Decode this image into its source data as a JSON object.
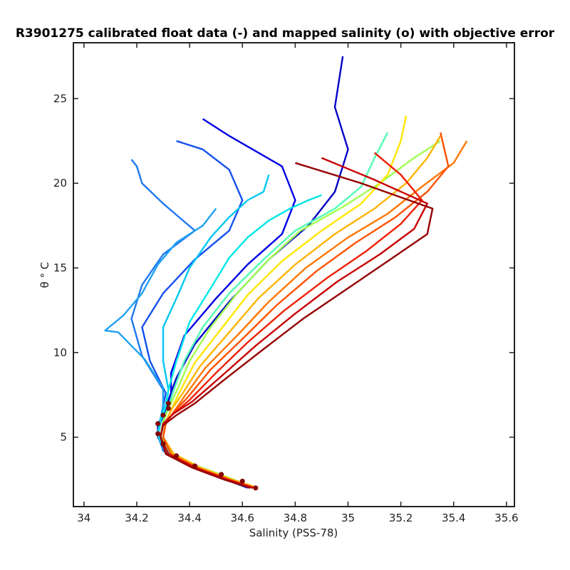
{
  "chart_data": {
    "type": "line",
    "title": "R3901275 calibrated float data (-) and mapped salinity (o) with objective error",
    "xlabel": "Salinity (PSS-78)",
    "ylabel": "θ ° C",
    "xlim": [
      33.96,
      35.63
    ],
    "ylim": [
      0.9,
      28.3
    ],
    "xticks": [
      "34",
      "34.2",
      "34.4",
      "34.6",
      "34.8",
      "35",
      "35.2",
      "35.4",
      "35.6"
    ],
    "xtick_values": [
      34.0,
      34.2,
      34.4,
      34.6,
      34.8,
      35.0,
      35.2,
      35.4,
      35.6
    ],
    "yticks": [
      "5",
      "10",
      "15",
      "20",
      "25"
    ],
    "ytick_values": [
      5,
      10,
      15,
      20,
      25
    ],
    "grid": false,
    "colormap": "jet",
    "deep_curve": {
      "salinity": [
        34.65,
        34.6,
        34.52,
        34.42,
        34.35,
        34.3,
        34.28,
        34.28,
        34.3,
        34.32,
        34.32
      ],
      "theta": [
        2.0,
        2.4,
        2.8,
        3.3,
        3.9,
        4.6,
        5.2,
        5.8,
        6.3,
        6.7,
        7.0
      ]
    },
    "series": [
      {
        "color": "#0000c8",
        "values": [
          [
            34.65,
            2.0
          ],
          [
            34.55,
            2.5
          ],
          [
            34.42,
            3.2
          ],
          [
            34.32,
            4.0
          ],
          [
            34.28,
            5.0
          ],
          [
            34.28,
            5.8
          ],
          [
            34.31,
            6.5
          ],
          [
            34.32,
            7.2
          ],
          [
            34.35,
            8.5
          ],
          [
            34.42,
            10.5
          ],
          [
            34.55,
            13.0
          ],
          [
            34.7,
            15.5
          ],
          [
            34.85,
            17.5
          ],
          [
            34.95,
            19.5
          ],
          [
            35.0,
            22.0
          ],
          [
            34.95,
            24.5
          ],
          [
            34.98,
            27.5
          ]
        ]
      },
      {
        "color": "#0000e6",
        "values": [
          [
            34.64,
            2.0
          ],
          [
            34.54,
            2.6
          ],
          [
            34.41,
            3.3
          ],
          [
            34.31,
            4.1
          ],
          [
            34.28,
            5.1
          ],
          [
            34.29,
            5.9
          ],
          [
            34.31,
            6.6
          ],
          [
            34.33,
            7.4
          ],
          [
            34.33,
            8.8
          ],
          [
            34.38,
            11.0
          ],
          [
            34.5,
            13.2
          ],
          [
            34.62,
            15.2
          ],
          [
            34.75,
            17.0
          ],
          [
            34.8,
            19.0
          ],
          [
            34.75,
            21.0
          ],
          [
            34.55,
            22.8
          ],
          [
            34.45,
            23.8
          ]
        ]
      },
      {
        "color": "#1450f0",
        "values": [
          [
            34.62,
            2.0
          ],
          [
            34.52,
            2.6
          ],
          [
            34.4,
            3.3
          ],
          [
            34.3,
            4.2
          ],
          [
            34.28,
            5.2
          ],
          [
            34.29,
            6.0
          ],
          [
            34.3,
            6.8
          ],
          [
            34.31,
            7.6
          ],
          [
            34.25,
            9.5
          ],
          [
            34.22,
            11.5
          ],
          [
            34.3,
            13.5
          ],
          [
            34.42,
            15.5
          ],
          [
            34.55,
            17.2
          ],
          [
            34.6,
            19.0
          ],
          [
            34.55,
            20.8
          ],
          [
            34.45,
            22.0
          ],
          [
            34.35,
            22.5
          ]
        ]
      },
      {
        "color": "#1e78f0",
        "values": [
          [
            34.63,
            2.0
          ],
          [
            34.53,
            2.6
          ],
          [
            34.4,
            3.4
          ],
          [
            34.3,
            4.2
          ],
          [
            34.28,
            5.1
          ],
          [
            34.29,
            6.0
          ],
          [
            34.3,
            6.8
          ],
          [
            34.3,
            7.8
          ],
          [
            34.22,
            9.8
          ],
          [
            34.18,
            12.0
          ],
          [
            34.22,
            14.0
          ],
          [
            34.3,
            15.8
          ],
          [
            34.42,
            17.2
          ],
          [
            34.3,
            18.8
          ],
          [
            34.22,
            20.0
          ],
          [
            34.2,
            21.0
          ],
          [
            34.18,
            21.4
          ]
        ]
      },
      {
        "color": "#1ea0f0",
        "values": [
          [
            34.63,
            2.1
          ],
          [
            34.52,
            2.7
          ],
          [
            34.4,
            3.4
          ],
          [
            34.3,
            4.3
          ],
          [
            34.28,
            5.2
          ],
          [
            34.29,
            6.1
          ],
          [
            34.3,
            6.9
          ],
          [
            34.3,
            7.9
          ],
          [
            34.23,
            9.6
          ],
          [
            34.13,
            11.2
          ],
          [
            34.08,
            11.3
          ],
          [
            34.15,
            12.2
          ],
          [
            34.22,
            13.5
          ],
          [
            34.28,
            15.2
          ],
          [
            34.35,
            16.5
          ],
          [
            34.45,
            17.5
          ],
          [
            34.5,
            18.5
          ]
        ]
      },
      {
        "color": "#00c8f0",
        "values": [
          [
            34.64,
            2.0
          ],
          [
            34.54,
            2.6
          ],
          [
            34.41,
            3.3
          ],
          [
            34.31,
            4.2
          ],
          [
            34.28,
            5.2
          ],
          [
            34.29,
            6.1
          ],
          [
            34.31,
            6.9
          ],
          [
            34.32,
            7.8
          ],
          [
            34.3,
            9.5
          ],
          [
            34.3,
            11.5
          ],
          [
            34.35,
            13.2
          ],
          [
            34.4,
            15.0
          ],
          [
            34.48,
            16.8
          ],
          [
            34.55,
            18.0
          ],
          [
            34.62,
            19.0
          ],
          [
            34.68,
            19.5
          ],
          [
            34.7,
            20.5
          ]
        ]
      },
      {
        "color": "#00e6e6",
        "values": [
          [
            34.64,
            2.0
          ],
          [
            34.53,
            2.6
          ],
          [
            34.41,
            3.3
          ],
          [
            34.31,
            4.2
          ],
          [
            34.28,
            5.1
          ],
          [
            34.29,
            6.0
          ],
          [
            34.31,
            6.8
          ],
          [
            34.32,
            7.8
          ],
          [
            34.35,
            9.5
          ],
          [
            34.4,
            11.8
          ],
          [
            34.48,
            13.8
          ],
          [
            34.55,
            15.6
          ],
          [
            34.62,
            16.8
          ],
          [
            34.7,
            17.8
          ],
          [
            34.78,
            18.5
          ],
          [
            34.85,
            19.0
          ],
          [
            34.9,
            19.3
          ]
        ]
      },
      {
        "color": "#50ffb4",
        "values": [
          [
            34.65,
            2.0
          ],
          [
            34.54,
            2.6
          ],
          [
            34.42,
            3.3
          ],
          [
            34.32,
            4.2
          ],
          [
            34.29,
            5.1
          ],
          [
            34.3,
            6.0
          ],
          [
            34.32,
            6.8
          ],
          [
            34.34,
            7.8
          ],
          [
            34.38,
            9.5
          ],
          [
            34.45,
            11.5
          ],
          [
            34.55,
            13.5
          ],
          [
            34.68,
            15.5
          ],
          [
            34.8,
            17.2
          ],
          [
            34.95,
            18.5
          ],
          [
            35.05,
            19.8
          ],
          [
            35.1,
            21.5
          ],
          [
            35.15,
            23.0
          ]
        ]
      },
      {
        "color": "#a0ff50",
        "values": [
          [
            34.65,
            2.0
          ],
          [
            34.55,
            2.6
          ],
          [
            34.43,
            3.3
          ],
          [
            34.33,
            4.1
          ],
          [
            34.29,
            5.0
          ],
          [
            34.3,
            5.9
          ],
          [
            34.32,
            6.7
          ],
          [
            34.35,
            7.7
          ],
          [
            34.4,
            9.5
          ],
          [
            34.48,
            11.5
          ],
          [
            34.58,
            13.5
          ],
          [
            34.7,
            15.5
          ],
          [
            34.82,
            17.2
          ],
          [
            34.98,
            18.6
          ],
          [
            35.12,
            20.0
          ],
          [
            35.25,
            21.5
          ],
          [
            35.35,
            22.5
          ]
        ]
      },
      {
        "color": "#ffe600",
        "values": [
          [
            34.66,
            2.0
          ],
          [
            34.56,
            2.5
          ],
          [
            34.44,
            3.2
          ],
          [
            34.34,
            4.0
          ],
          [
            34.3,
            5.0
          ],
          [
            34.31,
            5.9
          ],
          [
            34.33,
            6.6
          ],
          [
            34.36,
            7.6
          ],
          [
            34.42,
            9.4
          ],
          [
            34.52,
            11.4
          ],
          [
            34.62,
            13.4
          ],
          [
            34.75,
            15.4
          ],
          [
            34.9,
            17.2
          ],
          [
            35.05,
            18.8
          ],
          [
            35.15,
            20.5
          ],
          [
            35.2,
            22.5
          ],
          [
            35.22,
            24.0
          ]
        ]
      },
      {
        "color": "#ffb400",
        "values": [
          [
            34.66,
            2.0
          ],
          [
            34.56,
            2.5
          ],
          [
            34.44,
            3.2
          ],
          [
            34.34,
            4.0
          ],
          [
            34.3,
            5.0
          ],
          [
            34.31,
            5.9
          ],
          [
            34.33,
            6.6
          ],
          [
            34.37,
            7.5
          ],
          [
            34.44,
            9.2
          ],
          [
            34.55,
            11.2
          ],
          [
            34.66,
            13.2
          ],
          [
            34.8,
            15.2
          ],
          [
            34.95,
            17.0
          ],
          [
            35.1,
            18.5
          ],
          [
            35.22,
            20.0
          ],
          [
            35.3,
            21.5
          ],
          [
            35.35,
            22.8
          ]
        ]
      },
      {
        "color": "#ff7800",
        "values": [
          [
            34.65,
            2.0
          ],
          [
            34.55,
            2.5
          ],
          [
            34.43,
            3.2
          ],
          [
            34.33,
            4.0
          ],
          [
            34.3,
            5.0
          ],
          [
            34.31,
            5.8
          ],
          [
            34.34,
            6.5
          ],
          [
            34.38,
            7.4
          ],
          [
            34.46,
            9.1
          ],
          [
            34.58,
            11.0
          ],
          [
            34.7,
            13.0
          ],
          [
            34.84,
            15.0
          ],
          [
            35.0,
            16.8
          ],
          [
            35.15,
            18.2
          ],
          [
            35.28,
            19.8
          ],
          [
            35.4,
            21.2
          ],
          [
            35.45,
            22.5
          ]
        ]
      },
      {
        "color": "#ff5000",
        "values": [
          [
            34.65,
            2.0
          ],
          [
            34.55,
            2.5
          ],
          [
            34.43,
            3.2
          ],
          [
            34.33,
            4.0
          ],
          [
            34.3,
            5.0
          ],
          [
            34.31,
            5.8
          ],
          [
            34.34,
            6.5
          ],
          [
            34.39,
            7.3
          ],
          [
            34.48,
            9.0
          ],
          [
            34.6,
            10.8
          ],
          [
            34.73,
            12.8
          ],
          [
            34.88,
            14.8
          ],
          [
            35.03,
            16.5
          ],
          [
            35.18,
            18.0
          ],
          [
            35.3,
            19.5
          ],
          [
            35.38,
            21.0
          ],
          [
            35.35,
            23.0
          ]
        ]
      },
      {
        "color": "#f01e00",
        "values": [
          [
            34.64,
            2.0
          ],
          [
            34.54,
            2.5
          ],
          [
            34.42,
            3.2
          ],
          [
            34.32,
            4.0
          ],
          [
            34.29,
            5.0
          ],
          [
            34.3,
            5.8
          ],
          [
            34.34,
            6.4
          ],
          [
            34.4,
            7.2
          ],
          [
            34.5,
            8.8
          ],
          [
            34.62,
            10.6
          ],
          [
            34.76,
            12.5
          ],
          [
            34.92,
            14.4
          ],
          [
            35.07,
            16.0
          ],
          [
            35.2,
            17.6
          ],
          [
            35.28,
            19.0
          ],
          [
            35.2,
            20.5
          ],
          [
            35.1,
            21.8
          ]
        ]
      },
      {
        "color": "#c80000",
        "values": [
          [
            34.64,
            2.0
          ],
          [
            34.54,
            2.5
          ],
          [
            34.42,
            3.2
          ],
          [
            34.32,
            4.0
          ],
          [
            34.29,
            5.0
          ],
          [
            34.3,
            5.8
          ],
          [
            34.34,
            6.4
          ],
          [
            34.41,
            7.1
          ],
          [
            34.52,
            8.6
          ],
          [
            34.65,
            10.4
          ],
          [
            34.8,
            12.3
          ],
          [
            34.96,
            14.2
          ],
          [
            35.12,
            15.8
          ],
          [
            35.25,
            17.3
          ],
          [
            35.3,
            18.8
          ],
          [
            35.1,
            20.2
          ],
          [
            34.9,
            21.5
          ]
        ]
      },
      {
        "color": "#960000",
        "values": [
          [
            34.63,
            2.0
          ],
          [
            34.53,
            2.5
          ],
          [
            34.41,
            3.2
          ],
          [
            34.31,
            4.0
          ],
          [
            34.29,
            5.0
          ],
          [
            34.3,
            5.7
          ],
          [
            34.35,
            6.3
          ],
          [
            34.42,
            7.0
          ],
          [
            34.54,
            8.5
          ],
          [
            34.68,
            10.2
          ],
          [
            34.83,
            12.0
          ],
          [
            35.0,
            13.8
          ],
          [
            35.16,
            15.5
          ],
          [
            35.3,
            17.0
          ],
          [
            35.32,
            18.5
          ],
          [
            35.05,
            20.0
          ],
          [
            34.8,
            21.2
          ]
        ]
      }
    ]
  }
}
